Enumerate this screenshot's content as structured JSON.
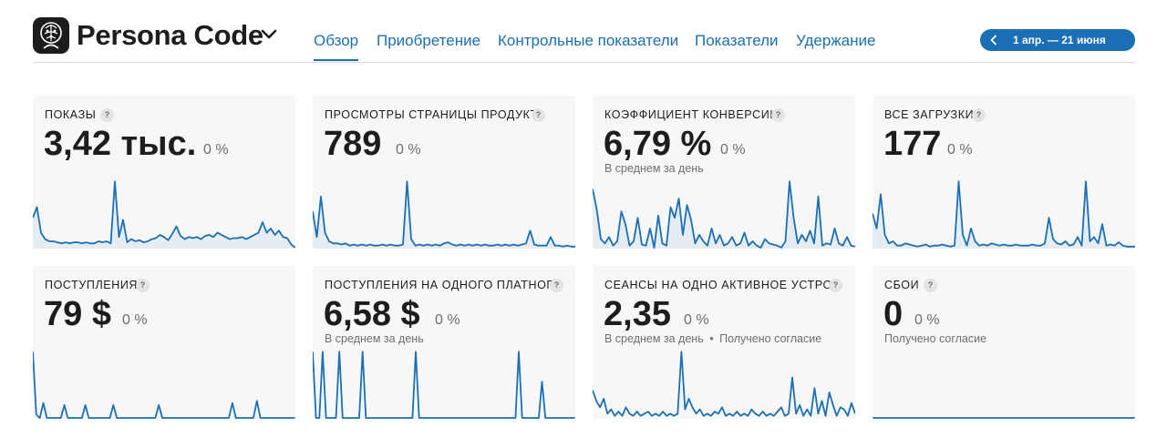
{
  "app": {
    "title": "Persona Code",
    "icon": "brain-logo-icon"
  },
  "tabs": [
    {
      "label": "Обзор",
      "active": true
    },
    {
      "label": "Приобретение",
      "active": false
    },
    {
      "label": "Контрольные показатели",
      "active": false
    },
    {
      "label": "Показатели",
      "active": false
    },
    {
      "label": "Удержание",
      "active": false
    }
  ],
  "date_range": {
    "label": "1 апр. — 21 июня",
    "icon": "chevron-left-icon"
  },
  "colors": {
    "accent": "#1a6fb5",
    "card_bg": "#f7f7f8"
  },
  "help_glyph": "?",
  "cards": [
    {
      "title": "ПОКАЗЫ",
      "value": "3,42 тыс.",
      "change": "0 %",
      "sub": "",
      "series": [
        28,
        38,
        14,
        8,
        6,
        6,
        5,
        4,
        5,
        4,
        5,
        5,
        4,
        5,
        4,
        4,
        6,
        5,
        6,
        4,
        62,
        10,
        26,
        5,
        8,
        6,
        7,
        5,
        6,
        8,
        9,
        12,
        10,
        7,
        13,
        20,
        11,
        8,
        10,
        9,
        10,
        8,
        11,
        12,
        10,
        14,
        12,
        10,
        8,
        9,
        9,
        10,
        8,
        10,
        12,
        14,
        24,
        14,
        18,
        12,
        16,
        10,
        9,
        3,
        0
      ]
    },
    {
      "title": "ПРОСМОТРЫ СТРАНИЦЫ ПРОДУКТА",
      "value": "789",
      "change": "0 %",
      "sub": "",
      "series": [
        34,
        10,
        48,
        14,
        6,
        4,
        4,
        3,
        4,
        2,
        3,
        2,
        3,
        2,
        3,
        2,
        2,
        3,
        2,
        3,
        2,
        2,
        3,
        62,
        8,
        2,
        3,
        2,
        3,
        2,
        3,
        2,
        4,
        5,
        3,
        2,
        3,
        2,
        3,
        2,
        3,
        2,
        3,
        2,
        2,
        3,
        2,
        3,
        2,
        3,
        2,
        3,
        4,
        16,
        3,
        2,
        2,
        2,
        10,
        2,
        2,
        1,
        2,
        1,
        1
      ]
    },
    {
      "title": "КОЭФФИЦИЕНТ КОНВЕРСИИ",
      "value": "6,79 %",
      "change": "0 %",
      "sub": "В среднем за день",
      "series": [
        55,
        36,
        8,
        4,
        10,
        2,
        6,
        34,
        22,
        2,
        6,
        28,
        3,
        2,
        18,
        0,
        30,
        4,
        2,
        38,
        28,
        46,
        12,
        40,
        26,
        4,
        12,
        6,
        2,
        18,
        4,
        12,
        2,
        4,
        10,
        2,
        4,
        14,
        2,
        6,
        2,
        0,
        8,
        4,
        3,
        2,
        0,
        6,
        62,
        28,
        4,
        12,
        6,
        16,
        4,
        48,
        2,
        4,
        3,
        18,
        4,
        2,
        10,
        2,
        1
      ]
    },
    {
      "title": "ВСЕ ЗАГРУЗКИ",
      "value": "177",
      "change": "0 %",
      "sub": "",
      "series": [
        32,
        18,
        50,
        12,
        4,
        6,
        2,
        2,
        4,
        3,
        2,
        1,
        2,
        3,
        1,
        2,
        2,
        3,
        2,
        1,
        2,
        62,
        12,
        2,
        18,
        6,
        2,
        3,
        2,
        4,
        3,
        2,
        3,
        2,
        2,
        3,
        2,
        2,
        2,
        3,
        2,
        2,
        4,
        28,
        8,
        4,
        3,
        6,
        2,
        3,
        10,
        2,
        62,
        6,
        10,
        4,
        22,
        2,
        3,
        2,
        5,
        2,
        1,
        1,
        1
      ]
    },
    {
      "title": "ПОСТУПЛЕНИЯ",
      "value": "79 $",
      "change": "0 %",
      "sub": "",
      "series": [
        62,
        3,
        0,
        14,
        0,
        0,
        0,
        0,
        0,
        12,
        0,
        0,
        0,
        0,
        0,
        12,
        0,
        0,
        0,
        0,
        0,
        0,
        0,
        12,
        0,
        0,
        0,
        0,
        0,
        0,
        0,
        0,
        0,
        0,
        0,
        0,
        12,
        0,
        0,
        0,
        0,
        0,
        0,
        0,
        0,
        0,
        0,
        0,
        0,
        0,
        0,
        0,
        0,
        0,
        0,
        0,
        0,
        14,
        0,
        0,
        0,
        0,
        0,
        0,
        16,
        0,
        0,
        0,
        0,
        0,
        0,
        0,
        0,
        0,
        0,
        0
      ]
    },
    {
      "title": "ПОСТУПЛЕНИЯ НА ОДНОГО ПЛАТНОГ...",
      "value": "6,58 $",
      "change": "0 %",
      "sub": "В среднем за день",
      "series": [
        62,
        0,
        0,
        62,
        0,
        0,
        0,
        0,
        62,
        0,
        0,
        0,
        0,
        0,
        0,
        62,
        0,
        0,
        0,
        0,
        0,
        0,
        0,
        0,
        0,
        0,
        0,
        0,
        0,
        0,
        0,
        62,
        0,
        0,
        0,
        0,
        0,
        0,
        0,
        0,
        0,
        0,
        0,
        0,
        0,
        0,
        0,
        0,
        0,
        0,
        0,
        0,
        0,
        0,
        0,
        0,
        0,
        0,
        0,
        0,
        0,
        0,
        62,
        0,
        0,
        0,
        0,
        0,
        0,
        34,
        0,
        0,
        0,
        0,
        0,
        0,
        0,
        0,
        0,
        0
      ]
    },
    {
      "title": "СЕАНСЫ НА ОДНО АКТИВНОЕ УСТРО...",
      "value": "2,35",
      "change": "0 %",
      "sub": "В среднем за день",
      "consent": "Получено согласие",
      "series": [
        26,
        16,
        10,
        18,
        4,
        8,
        2,
        6,
        2,
        10,
        4,
        2,
        6,
        2,
        4,
        6,
        2,
        4,
        2,
        6,
        2,
        4,
        2,
        4,
        62,
        8,
        18,
        10,
        4,
        8,
        2,
        4,
        2,
        6,
        4,
        10,
        2,
        4,
        2,
        6,
        2,
        4,
        2,
        8,
        4,
        2,
        6,
        2,
        4,
        2,
        6,
        10,
        2,
        4,
        38,
        4,
        12,
        2,
        8,
        2,
        28,
        4,
        16,
        2,
        24,
        12,
        2,
        10,
        8,
        2,
        14,
        4
      ]
    },
    {
      "title": "СБОИ",
      "value": "0",
      "change": "0 %",
      "sub": "Получено согласие",
      "series": [
        0,
        0,
        0,
        0,
        0,
        0,
        0,
        0,
        0,
        0,
        0,
        0,
        0,
        0,
        0,
        0,
        0,
        0,
        0,
        0
      ]
    }
  ]
}
